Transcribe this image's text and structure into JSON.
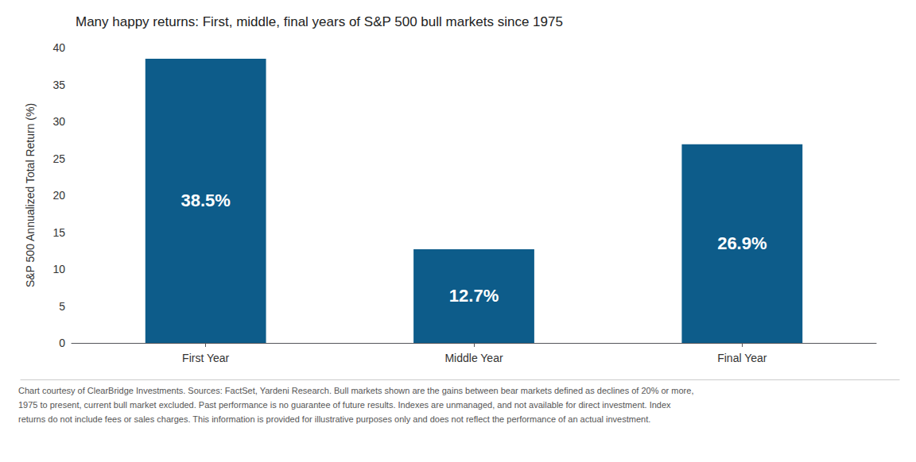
{
  "chart_data": {
    "type": "bar",
    "title": "Many happy returns: First, middle, final years of S&P 500 bull markets since 1975",
    "categories": [
      "First Year",
      "Middle Year",
      "Final Year"
    ],
    "values": [
      38.5,
      12.7,
      26.9
    ],
    "value_labels": [
      "38.5%",
      "12.7%",
      "26.9%"
    ],
    "data_labels": true,
    "color": "#0d5c8a",
    "ylabel": "S&P 500 Annualized Total Return (%)",
    "ylim": [
      0,
      40
    ],
    "yticks": [
      0,
      5,
      10,
      15,
      20,
      25,
      30,
      35,
      40
    ],
    "grid": false,
    "annotations": [
      "Chart courtesy of ClearBridge Investments. Sources: FactSet, Yardeni Research. Bull markets shown are the gains between bear markets defined as declines of 20% or more,",
      "1975 to present, current bull market excluded. Past performance is no guarantee of future results. Indexes are unmanaged, and not available for direct investment. Index",
      "returns do not include fees or sales charges. This information is provided for illustrative purposes only and does not reflect the performance of an actual investment."
    ]
  }
}
